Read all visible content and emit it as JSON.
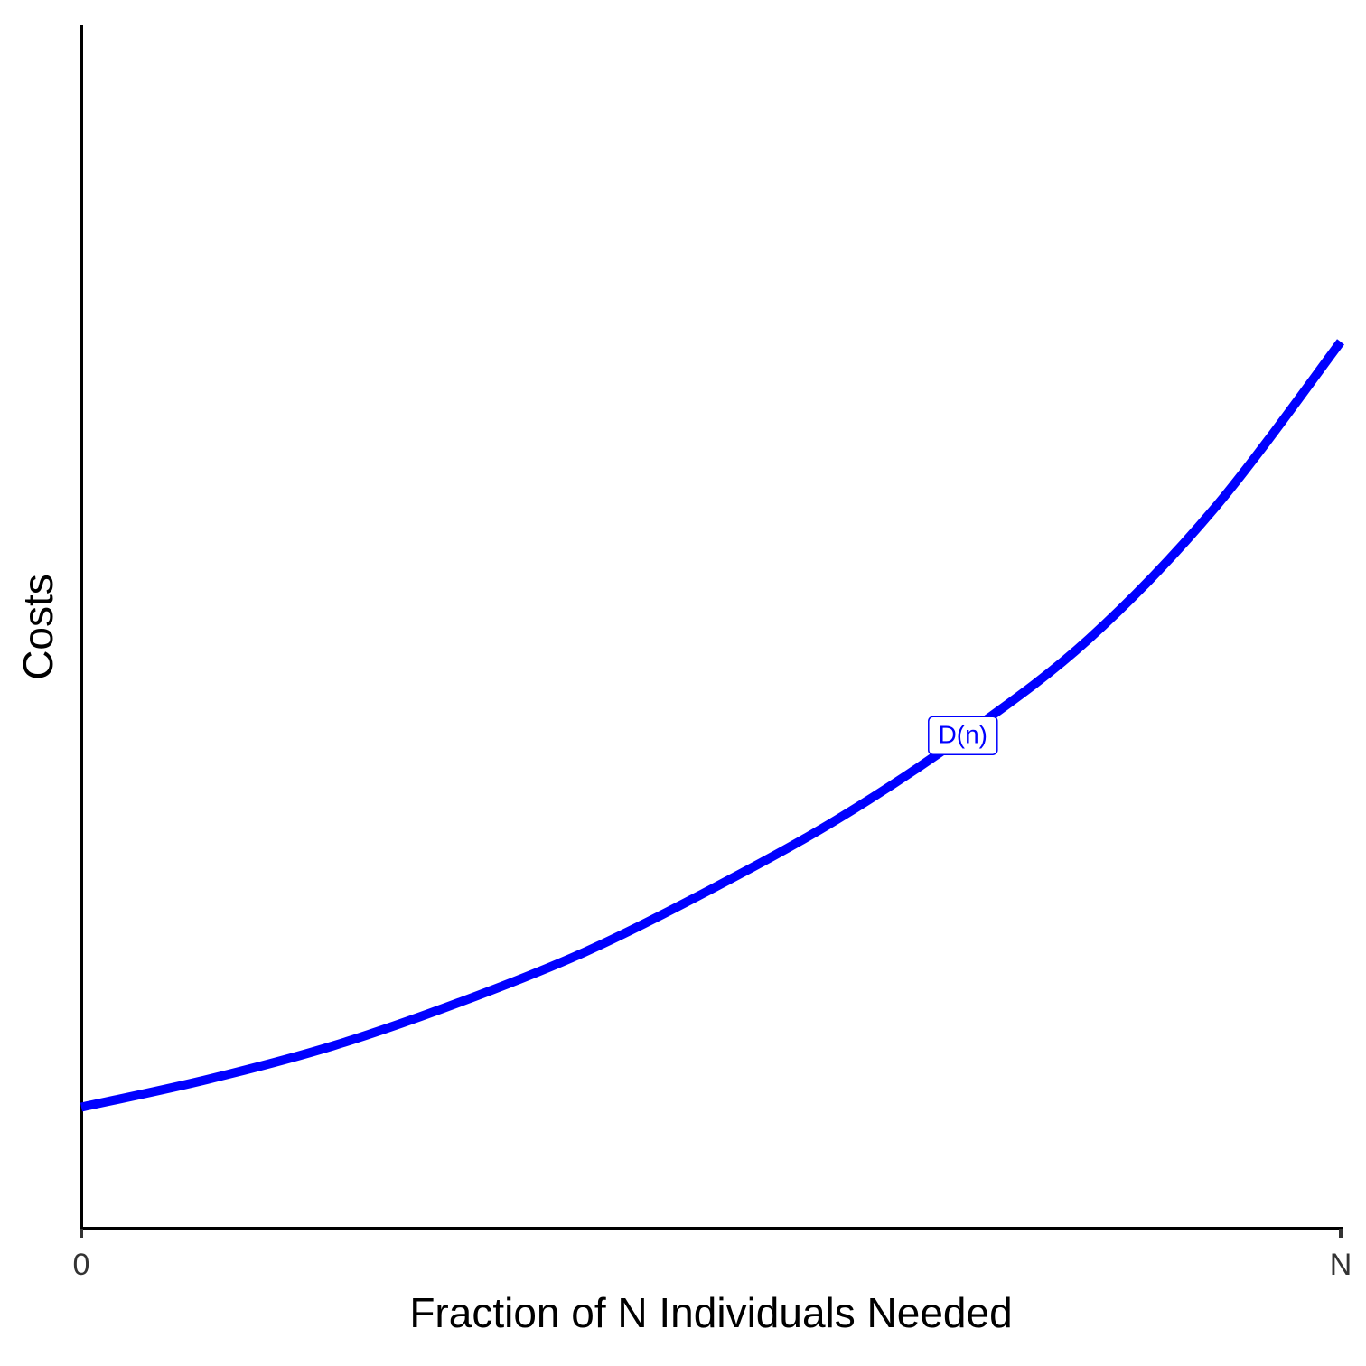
{
  "chart_data": {
    "type": "line",
    "x_label": "Fraction of N Individuals Needed",
    "y_label": "Costs",
    "x": [
      0,
      1,
      2,
      3,
      4,
      5,
      6,
      7,
      8,
      9,
      10
    ],
    "series": [
      {
        "name": "D(n)",
        "color": "#0000ff",
        "values": [
          1.01,
          1.24,
          1.52,
          1.88,
          2.3,
          2.82,
          3.4,
          4.09,
          4.9,
          5.99,
          7.37
        ]
      }
    ],
    "xlim": [
      0,
      10
    ],
    "xticks": [
      0,
      {
        "value": 10,
        "label": "N"
      }
    ],
    "ylim": [
      0,
      10
    ]
  }
}
